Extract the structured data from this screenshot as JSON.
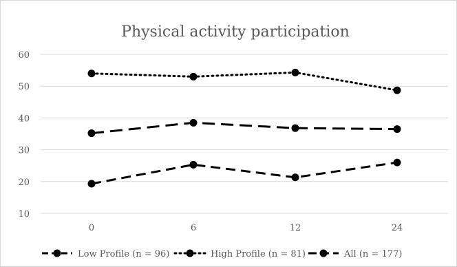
{
  "chart_data": {
    "type": "line",
    "title": "Physical activity participation",
    "xlabel": "",
    "ylabel": "",
    "categories": [
      "0",
      "6",
      "12",
      "24"
    ],
    "y_ticks": [
      "10",
      "20",
      "30",
      "40",
      "50",
      "60"
    ],
    "ylim": [
      10,
      60
    ],
    "grid": "horizontal",
    "legend_position": "bottom",
    "series": [
      {
        "name": "Low Profile (n = 96)",
        "values": [
          19.3,
          25.3,
          21.3,
          26.0
        ],
        "line_style": "dashed",
        "color": "#000000"
      },
      {
        "name": "High Profile (n = 81)",
        "values": [
          54.0,
          53.0,
          54.3,
          48.7
        ],
        "line_style": "dotted",
        "color": "#000000"
      },
      {
        "name": "All (n = 177)",
        "values": [
          35.2,
          38.5,
          36.8,
          36.5
        ],
        "line_style": "long-dash",
        "color": "#000000"
      }
    ]
  }
}
